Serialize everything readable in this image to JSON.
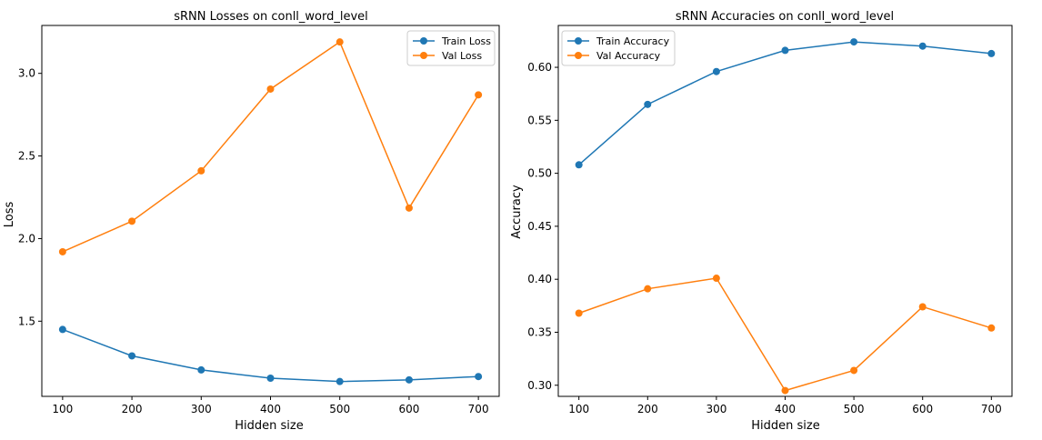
{
  "chart_data": [
    {
      "type": "line",
      "title": "sRNN Losses on conll_word_level",
      "xlabel": "Hidden size",
      "ylabel": "Loss",
      "x": [
        100,
        200,
        300,
        400,
        500,
        600,
        700
      ],
      "xticks": [
        "100",
        "200",
        "300",
        "400",
        "500",
        "600",
        "700"
      ],
      "yticks": [
        "1.5",
        "2.0",
        "2.5",
        "3.0"
      ],
      "xlim": [
        70,
        730
      ],
      "ylim": [
        1.045,
        3.29
      ],
      "legend": "top-right",
      "grid": false,
      "series": [
        {
          "name": "Train Loss",
          "color": "#1f77b4",
          "values": [
            1.45,
            1.29,
            1.205,
            1.155,
            1.135,
            1.145,
            1.165
          ]
        },
        {
          "name": "Val Loss",
          "color": "#ff7f0e",
          "values": [
            1.92,
            2.105,
            2.41,
            2.905,
            3.19,
            2.185,
            2.87
          ]
        }
      ]
    },
    {
      "type": "line",
      "title": "sRNN Accuracies on conll_word_level",
      "xlabel": "Hidden size",
      "ylabel": "Accuracy",
      "x": [
        100,
        200,
        300,
        400,
        500,
        600,
        700
      ],
      "xticks": [
        "100",
        "200",
        "300",
        "400",
        "500",
        "600",
        "700"
      ],
      "yticks": [
        "0.30",
        "0.35",
        "0.40",
        "0.45",
        "0.50",
        "0.55",
        "0.60"
      ],
      "xlim": [
        70,
        730
      ],
      "ylim": [
        0.2895,
        0.6395
      ],
      "legend": "top-left",
      "grid": false,
      "series": [
        {
          "name": "Train Accuracy",
          "color": "#1f77b4",
          "values": [
            0.508,
            0.565,
            0.596,
            0.616,
            0.624,
            0.62,
            0.613
          ]
        },
        {
          "name": "Val Accuracy",
          "color": "#ff7f0e",
          "values": [
            0.368,
            0.391,
            0.401,
            0.295,
            0.314,
            0.374,
            0.354
          ]
        }
      ]
    }
  ]
}
